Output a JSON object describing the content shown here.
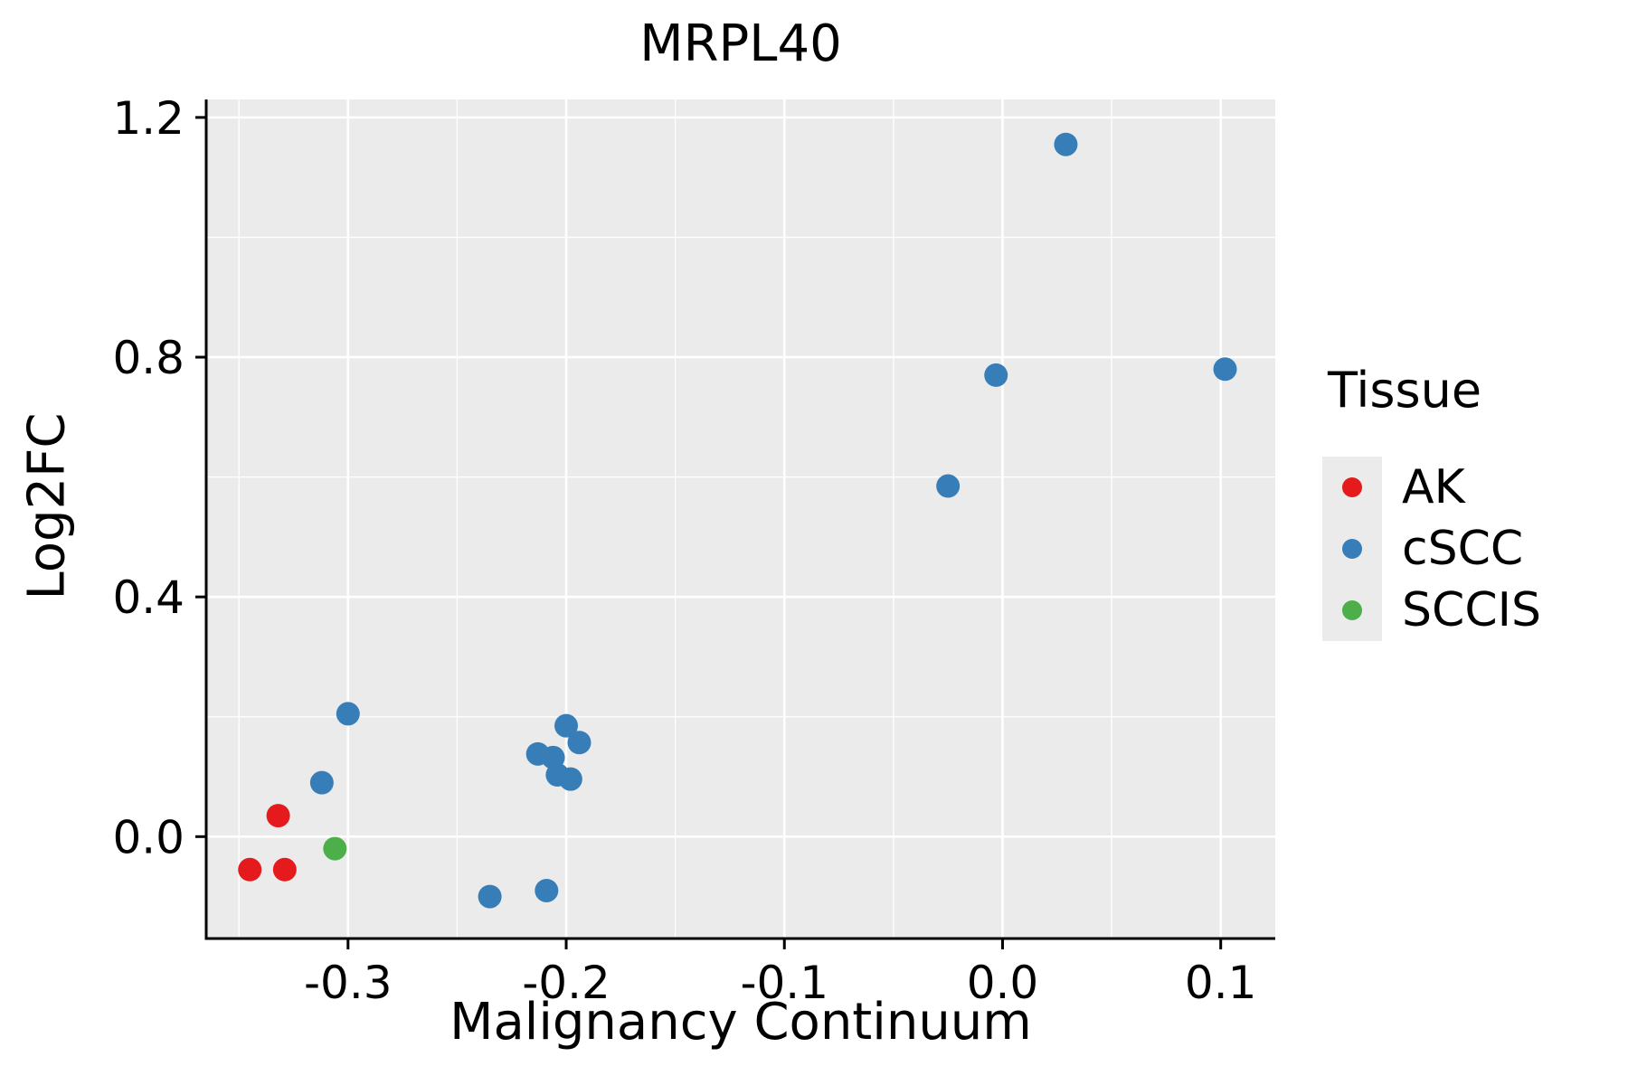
{
  "chart_data": {
    "type": "scatter",
    "title": "MRPL40",
    "xlabel": "Malignancy Continuum",
    "ylabel": "Log2FC",
    "xlim": [
      -0.365,
      0.125
    ],
    "ylim": [
      -0.17,
      1.23
    ],
    "x_ticks": [
      -0.3,
      -0.2,
      -0.1,
      0.0,
      0.1
    ],
    "x_tick_labels": [
      "-0.3",
      "-0.2",
      "-0.1",
      "0.0",
      "0.1"
    ],
    "y_ticks": [
      0.0,
      0.4,
      0.8,
      1.2
    ],
    "y_tick_labels": [
      "0.0",
      "0.4",
      "0.8",
      "1.2"
    ],
    "grid": true,
    "panel_bg": "#EBEBEB",
    "grid_color": "#FFFFFF",
    "axis_color": "#000000",
    "legend": {
      "title": "Tissue",
      "position": "right",
      "items": [
        {
          "label": "AK",
          "color": "#E41A1C"
        },
        {
          "label": "cSCC",
          "color": "#377EB8"
        },
        {
          "label": "SCCIS",
          "color": "#4DAF4A"
        }
      ]
    },
    "series": [
      {
        "name": "AK",
        "color": "#E41A1C",
        "points": [
          [
            -0.332,
            0.035
          ],
          [
            -0.345,
            -0.055
          ],
          [
            -0.329,
            -0.055
          ]
        ]
      },
      {
        "name": "cSCC",
        "color": "#377EB8",
        "points": [
          [
            -0.3,
            0.205
          ],
          [
            -0.312,
            0.09
          ],
          [
            -0.235,
            -0.1
          ],
          [
            -0.209,
            -0.09
          ],
          [
            -0.2,
            0.185
          ],
          [
            -0.194,
            0.157
          ],
          [
            -0.213,
            0.138
          ],
          [
            -0.206,
            0.132
          ],
          [
            -0.204,
            0.103
          ],
          [
            -0.198,
            0.096
          ],
          [
            -0.025,
            0.585
          ],
          [
            -0.003,
            0.77
          ],
          [
            0.029,
            1.155
          ],
          [
            0.102,
            0.78
          ]
        ]
      },
      {
        "name": "SCCIS",
        "color": "#4DAF4A",
        "points": [
          [
            -0.306,
            -0.02
          ]
        ]
      }
    ]
  }
}
